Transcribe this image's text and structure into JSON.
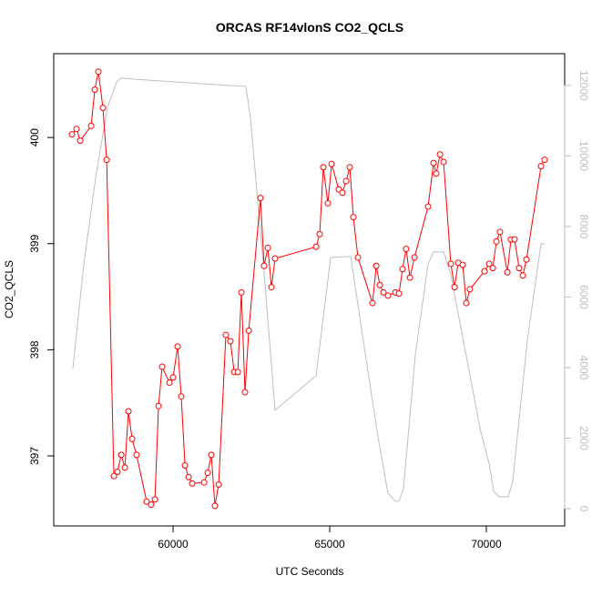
{
  "chart_data": {
    "type": "line",
    "title": "ORCAS RF14vlonS CO2_QCLS",
    "x_label": "UTC Seconds",
    "y_label": "CO2_QCLS",
    "xlim": [
      56190,
      72500
    ],
    "xticks": [
      60000,
      65000,
      70000
    ],
    "ylim": [
      396.34,
      400.79
    ],
    "yticks": [
      397,
      398,
      399,
      400
    ],
    "y2lim": [
      -490,
      12900
    ],
    "y2ticks": [
      0,
      2000,
      4000,
      6000,
      8000,
      10000,
      12000
    ],
    "series": [
      {
        "color": "#ff0000",
        "markers": true,
        "x": [
          56770,
          56920,
          57035,
          57385,
          57500,
          57615,
          57760,
          57880,
          58110,
          58225,
          58345,
          58460,
          58575,
          58690,
          58835,
          59155,
          59300,
          59420,
          59535,
          59650,
          59885,
          60000,
          60145,
          60260,
          60380,
          60495,
          60610,
          60990,
          61105,
          61220,
          61335,
          61455,
          61685,
          61830,
          61950,
          62065,
          62180,
          62295,
          62415,
          62790,
          62905,
          63025,
          63140,
          63255,
          64565,
          64680,
          64795,
          64940,
          65060,
          65290,
          65405,
          65525,
          65640,
          65755,
          65900,
          66365,
          66485,
          66600,
          66715,
          66860,
          67095,
          67210,
          67325,
          67440,
          67560,
          67705,
          68140,
          68315,
          68400,
          68520,
          68635,
          68865,
          68985,
          69100,
          69245,
          69360,
          69475,
          69940,
          70090,
          70205,
          70320,
          70435,
          70670,
          70785,
          70900,
          71045,
          71165,
          71280,
          71745,
          71860
        ],
        "values": [
          400.03,
          400.08,
          399.97,
          400.11,
          400.45,
          400.62,
          400.28,
          399.79,
          396.81,
          396.85,
          397.01,
          396.89,
          397.42,
          397.16,
          397.01,
          396.57,
          396.54,
          396.59,
          397.47,
          397.84,
          397.69,
          397.74,
          398.03,
          397.56,
          396.91,
          396.8,
          396.74,
          396.75,
          396.84,
          397.01,
          396.53,
          396.73,
          398.14,
          398.08,
          397.79,
          397.79,
          398.54,
          397.6,
          398.18,
          399.43,
          398.79,
          398.96,
          398.59,
          398.86,
          398.97,
          399.09,
          399.72,
          399.38,
          399.75,
          399.51,
          399.48,
          399.59,
          399.72,
          399.25,
          398.87,
          398.44,
          398.79,
          398.61,
          398.54,
          398.51,
          398.54,
          398.53,
          398.76,
          398.95,
          398.68,
          398.87,
          399.35,
          399.76,
          399.66,
          399.84,
          399.77,
          398.81,
          398.59,
          398.82,
          398.8,
          398.44,
          398.57,
          398.74,
          398.81,
          398.77,
          399.02,
          399.11,
          398.73,
          399.04,
          399.04,
          398.77,
          398.7,
          398.85,
          399.73,
          399.79
        ]
      },
      {
        "color": "#bebebe",
        "axis": "y2",
        "markers": false,
        "x": [
          56800,
          57150,
          57530,
          57905,
          58200,
          58345,
          58690,
          62325,
          62470,
          62905,
          63255,
          64565,
          65030,
          65670,
          66105,
          66540,
          66860,
          67095,
          67210,
          67355,
          67735,
          68140,
          68315,
          68635,
          68865,
          69390,
          69825,
          70090,
          70235,
          70410,
          70700,
          70845,
          71310,
          71745,
          71860
        ],
        "values": [
          3970,
          6940,
          9390,
          11380,
          12100,
          12210,
          12180,
          11970,
          11070,
          6680,
          2790,
          3770,
          7120,
          7150,
          4570,
          2040,
          440,
          210,
          210,
          570,
          4390,
          6940,
          7280,
          7280,
          6630,
          4180,
          2170,
          1270,
          490,
          340,
          340,
          800,
          4800,
          7510,
          7510
        ]
      }
    ]
  }
}
